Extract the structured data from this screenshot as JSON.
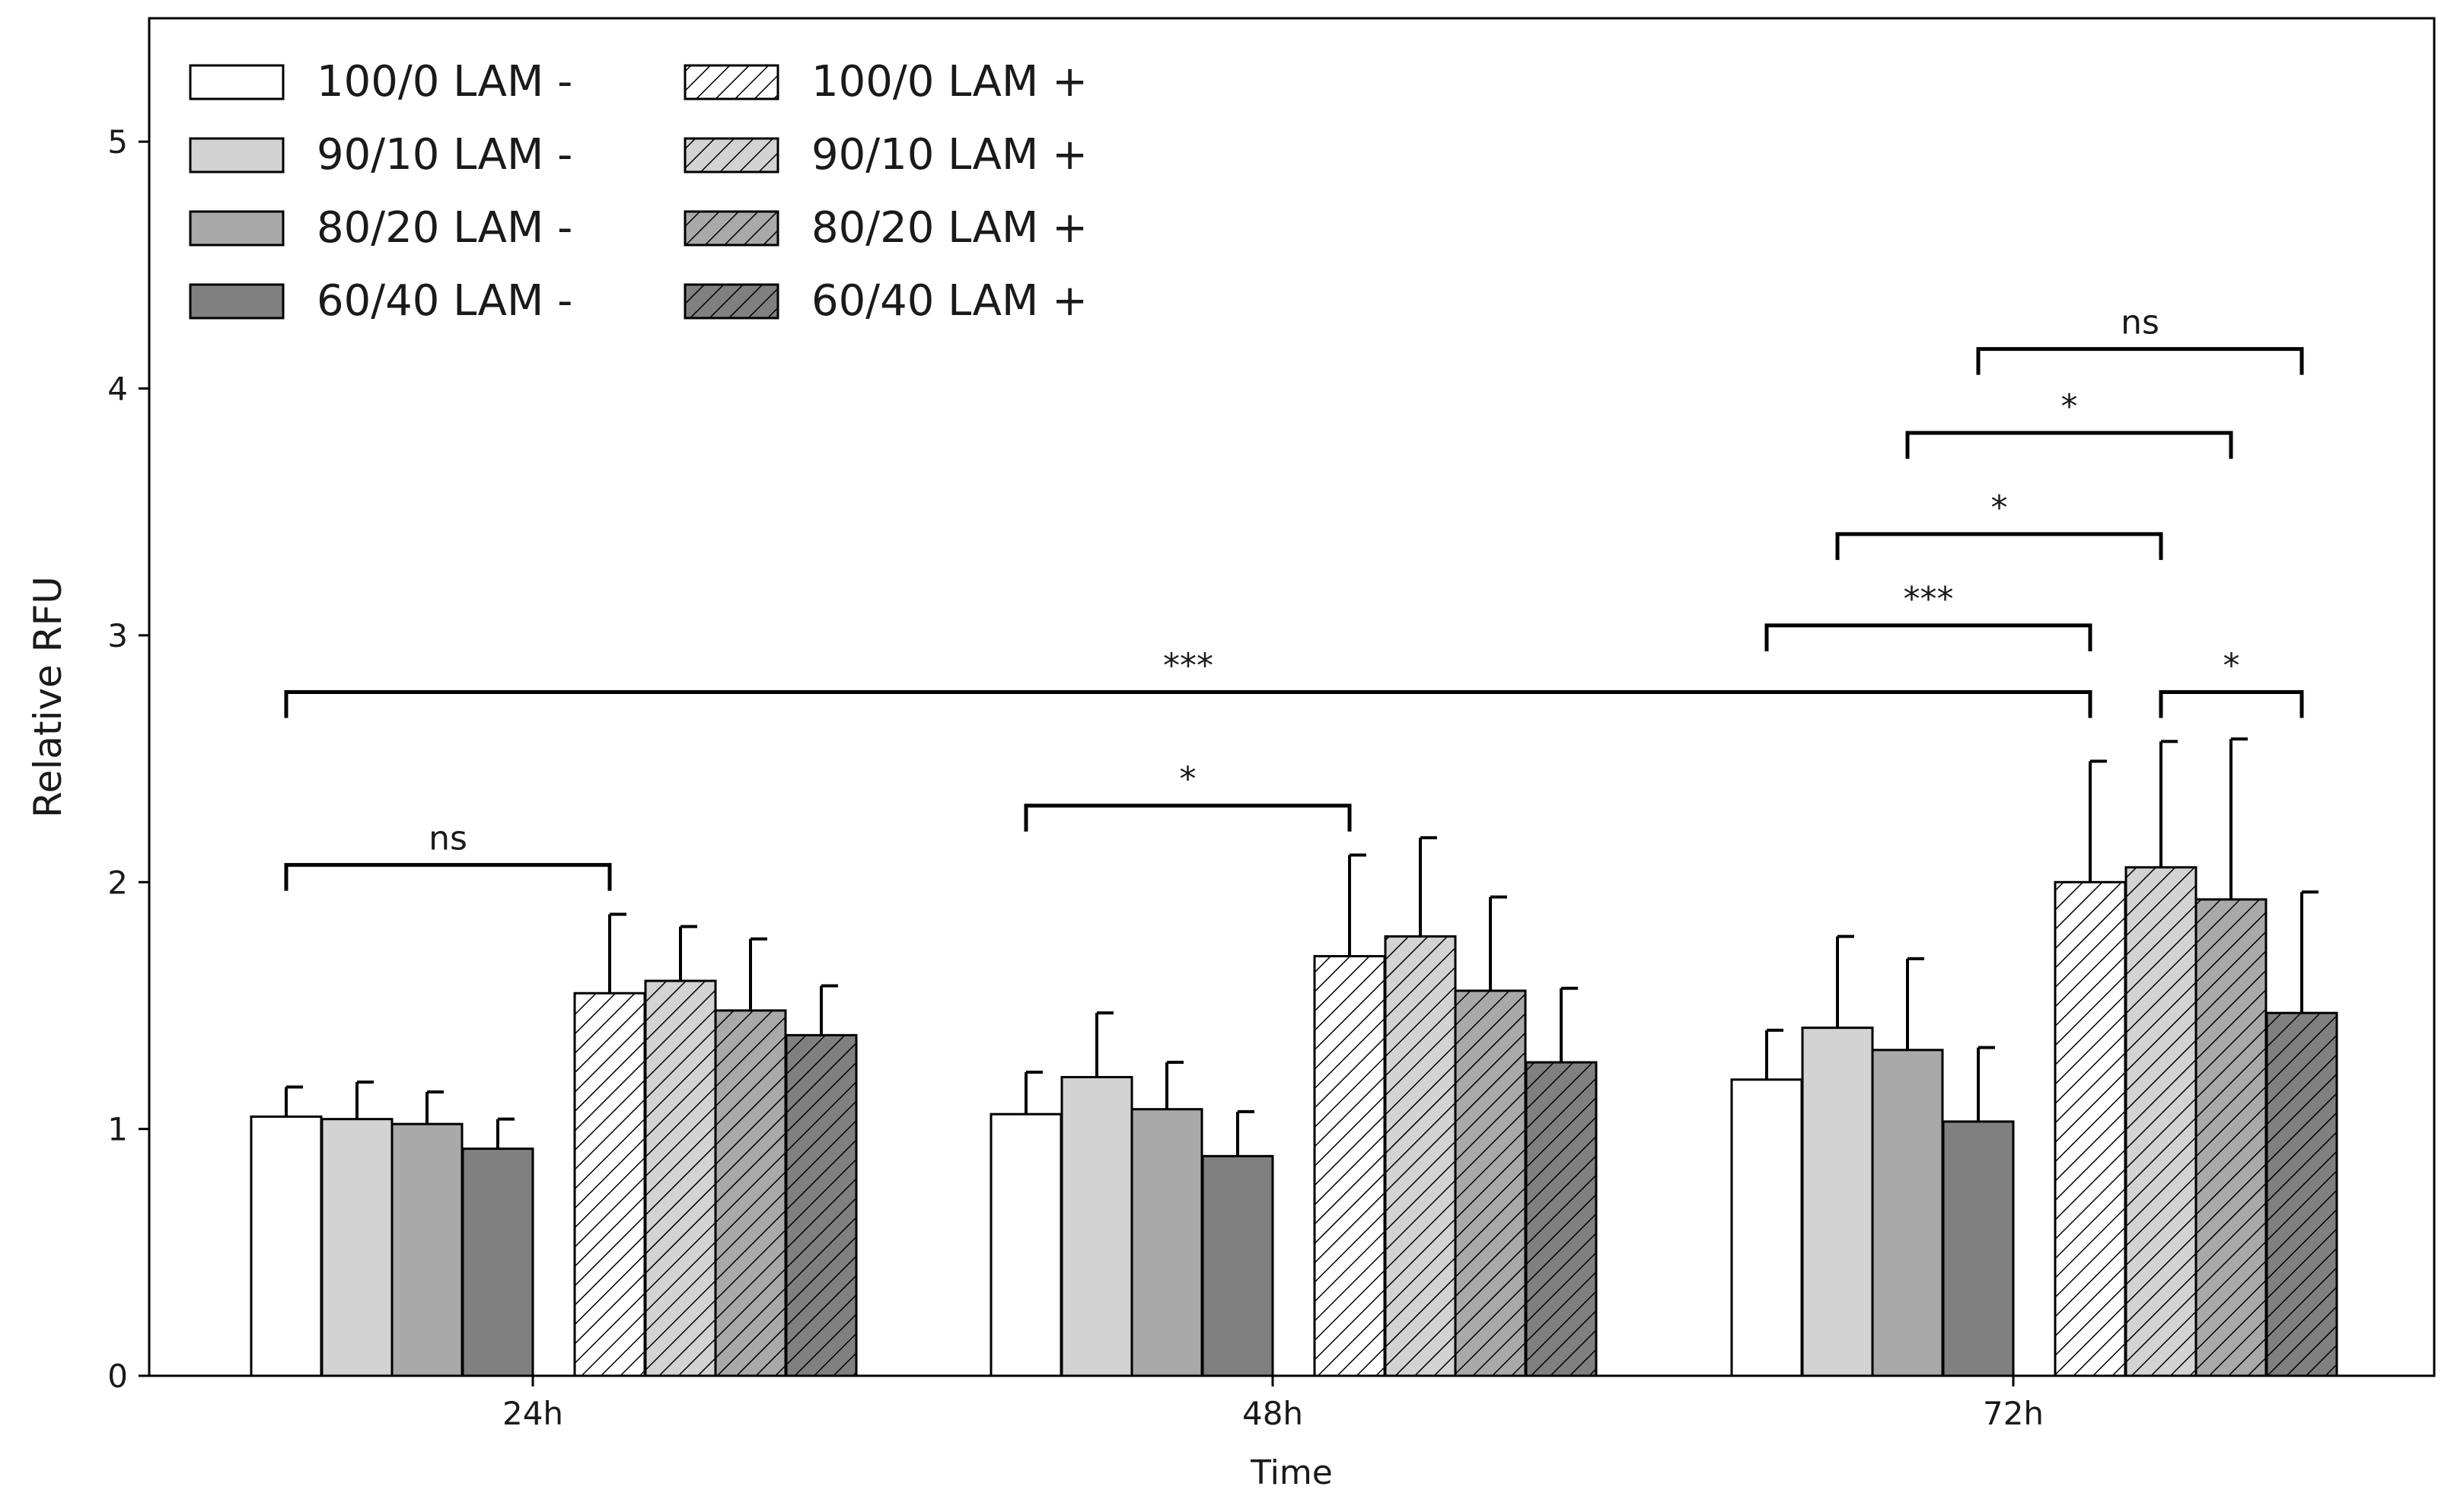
{
  "chart_data": {
    "type": "bar",
    "title": "",
    "xlabel": "Time",
    "ylabel": "Relative RFU",
    "ylim": [
      0,
      5.5
    ],
    "yticks": [
      "0",
      "1",
      "2",
      "3",
      "4",
      "5"
    ],
    "categories": [
      "24h",
      "48h",
      "72h"
    ],
    "grid": false,
    "legend_position": "top-left",
    "series": [
      {
        "name": "100/0 LAM -",
        "values": [
          1.05,
          1.06,
          1.2
        ],
        "errors": [
          0.12,
          0.17,
          0.2
        ],
        "color": "#ffffff",
        "hatch": false
      },
      {
        "name": "90/10 LAM -",
        "values": [
          1.04,
          1.21,
          1.41
        ],
        "errors": [
          0.15,
          0.26,
          0.37
        ],
        "color": "#d3d3d3",
        "hatch": false
      },
      {
        "name": "80/20 LAM -",
        "values": [
          1.02,
          1.08,
          1.32
        ],
        "errors": [
          0.13,
          0.19,
          0.37
        ],
        "color": "#a9a9a9",
        "hatch": false
      },
      {
        "name": "60/40 LAM -",
        "values": [
          0.92,
          0.89,
          1.03
        ],
        "errors": [
          0.12,
          0.18,
          0.3
        ],
        "color": "#808080",
        "hatch": false
      },
      {
        "name": "100/0 LAM +",
        "values": [
          1.55,
          1.7,
          2.0
        ],
        "errors": [
          0.32,
          0.41,
          0.49
        ],
        "color": "#ffffff",
        "hatch": true
      },
      {
        "name": "90/10 LAM +",
        "values": [
          1.6,
          1.78,
          2.06
        ],
        "errors": [
          0.22,
          0.4,
          0.51
        ],
        "color": "#d3d3d3",
        "hatch": true
      },
      {
        "name": "80/20 LAM +",
        "values": [
          1.48,
          1.56,
          1.93
        ],
        "errors": [
          0.29,
          0.38,
          0.65
        ],
        "color": "#a9a9a9",
        "hatch": true
      },
      {
        "name": "60/40 LAM +",
        "values": [
          1.38,
          1.27,
          1.47
        ],
        "errors": [
          0.2,
          0.3,
          0.49
        ],
        "color": "#808080",
        "hatch": true
      }
    ],
    "annotations": [
      {
        "label": "ns",
        "from": {
          "category": 0,
          "series": 0
        },
        "to": {
          "category": 0,
          "series": 4
        },
        "y": 2.07
      },
      {
        "label": "***",
        "from": {
          "category": 0,
          "series": 0
        },
        "to": {
          "category": 2,
          "series": 4
        },
        "y": 2.77
      },
      {
        "label": "*",
        "from": {
          "category": 1,
          "series": 0
        },
        "to": {
          "category": 1,
          "series": 4
        },
        "y": 2.31
      },
      {
        "label": "***",
        "from": {
          "category": 2,
          "series": 0
        },
        "to": {
          "category": 2,
          "series": 4
        },
        "y": 3.04
      },
      {
        "label": "*",
        "from": {
          "category": 2,
          "series": 5
        },
        "to": {
          "category": 2,
          "series": 7
        },
        "y": 2.77
      },
      {
        "label": "*",
        "from": {
          "category": 2,
          "series": 1
        },
        "to": {
          "category": 2,
          "series": 5
        },
        "y": 3.41
      },
      {
        "label": "*",
        "from": {
          "category": 2,
          "series": 2
        },
        "to": {
          "category": 2,
          "series": 6
        },
        "y": 3.82
      },
      {
        "label": "ns",
        "from": {
          "category": 2,
          "series": 3
        },
        "to": {
          "category": 2,
          "series": 7
        },
        "y": 4.16
      }
    ]
  }
}
